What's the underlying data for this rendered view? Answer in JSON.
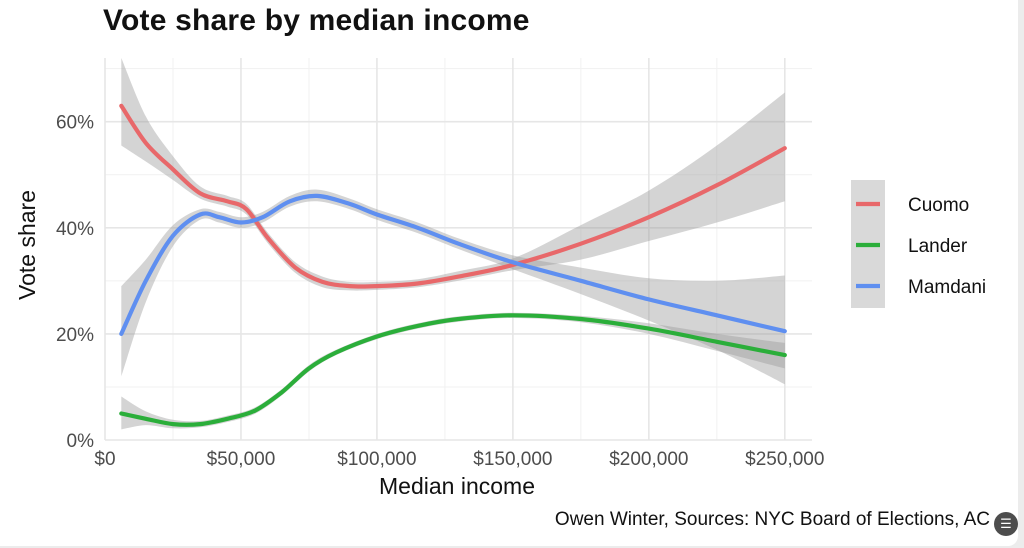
{
  "chart_data": {
    "type": "line",
    "title": "Vote share by median income",
    "xlabel": "Median income",
    "ylabel": "Vote share",
    "caption": "Owen Winter, Sources: NYC Board of Elections, AC",
    "xlim": [
      0,
      260000
    ],
    "ylim": [
      0,
      0.72
    ],
    "x_ticks": [
      0,
      50000,
      100000,
      150000,
      200000,
      250000
    ],
    "x_tick_labels": [
      "$0",
      "$50,000",
      "$100,000",
      "$150,000",
      "$200,000",
      "$250,000"
    ],
    "y_ticks": [
      0,
      0.2,
      0.4,
      0.6
    ],
    "y_tick_labels": [
      "0%",
      "20%",
      "40%",
      "60%"
    ],
    "grid": true,
    "legend_position": "right",
    "confidence_band": true,
    "series": [
      {
        "name": "Cuomo",
        "color": "#e8686a",
        "x": [
          6000,
          15000,
          25000,
          35000,
          45000,
          52000,
          60000,
          70000,
          80000,
          90000,
          100000,
          115000,
          130000,
          150000,
          175000,
          200000,
          225000,
          250000
        ],
        "y": [
          0.63,
          0.56,
          0.51,
          0.465,
          0.45,
          0.435,
          0.38,
          0.325,
          0.298,
          0.29,
          0.29,
          0.295,
          0.308,
          0.33,
          0.37,
          0.42,
          0.48,
          0.55
        ],
        "lower": [
          0.555,
          0.525,
          0.49,
          0.455,
          0.44,
          0.425,
          0.37,
          0.315,
          0.288,
          0.282,
          0.283,
          0.288,
          0.3,
          0.32,
          0.34,
          0.375,
          0.41,
          0.45
        ],
        "upper": [
          0.72,
          0.61,
          0.535,
          0.478,
          0.46,
          0.445,
          0.39,
          0.335,
          0.308,
          0.298,
          0.298,
          0.303,
          0.318,
          0.342,
          0.405,
          0.47,
          0.555,
          0.655
        ]
      },
      {
        "name": "Lander",
        "color": "#2bae3a",
        "x": [
          6000,
          15000,
          25000,
          35000,
          45000,
          55000,
          65000,
          75000,
          85000,
          100000,
          115000,
          130000,
          150000,
          175000,
          200000,
          225000,
          250000
        ],
        "y": [
          0.05,
          0.04,
          0.03,
          0.03,
          0.04,
          0.055,
          0.09,
          0.135,
          0.165,
          0.195,
          0.215,
          0.228,
          0.235,
          0.228,
          0.21,
          0.185,
          0.16
        ],
        "lower": [
          0.02,
          0.028,
          0.022,
          0.024,
          0.034,
          0.049,
          0.084,
          0.129,
          0.16,
          0.19,
          0.21,
          0.223,
          0.23,
          0.222,
          0.2,
          0.168,
          0.135
        ],
        "upper": [
          0.082,
          0.054,
          0.038,
          0.036,
          0.046,
          0.061,
          0.096,
          0.141,
          0.17,
          0.2,
          0.22,
          0.233,
          0.24,
          0.234,
          0.22,
          0.2,
          0.183
        ]
      },
      {
        "name": "Mamdani",
        "color": "#5f8ff0",
        "x": [
          6000,
          15000,
          25000,
          35000,
          42000,
          50000,
          58000,
          68000,
          78000,
          90000,
          100000,
          115000,
          130000,
          150000,
          175000,
          200000,
          225000,
          250000
        ],
        "y": [
          0.2,
          0.3,
          0.385,
          0.425,
          0.42,
          0.41,
          0.42,
          0.45,
          0.46,
          0.445,
          0.425,
          0.4,
          0.37,
          0.335,
          0.3,
          0.265,
          0.235,
          0.205
        ],
        "lower": [
          0.12,
          0.26,
          0.365,
          0.415,
          0.41,
          0.4,
          0.41,
          0.44,
          0.45,
          0.435,
          0.415,
          0.39,
          0.36,
          0.322,
          0.275,
          0.225,
          0.17,
          0.105
        ],
        "upper": [
          0.29,
          0.34,
          0.405,
          0.435,
          0.43,
          0.42,
          0.43,
          0.46,
          0.472,
          0.455,
          0.435,
          0.41,
          0.38,
          0.348,
          0.325,
          0.305,
          0.3,
          0.31
        ]
      }
    ]
  }
}
